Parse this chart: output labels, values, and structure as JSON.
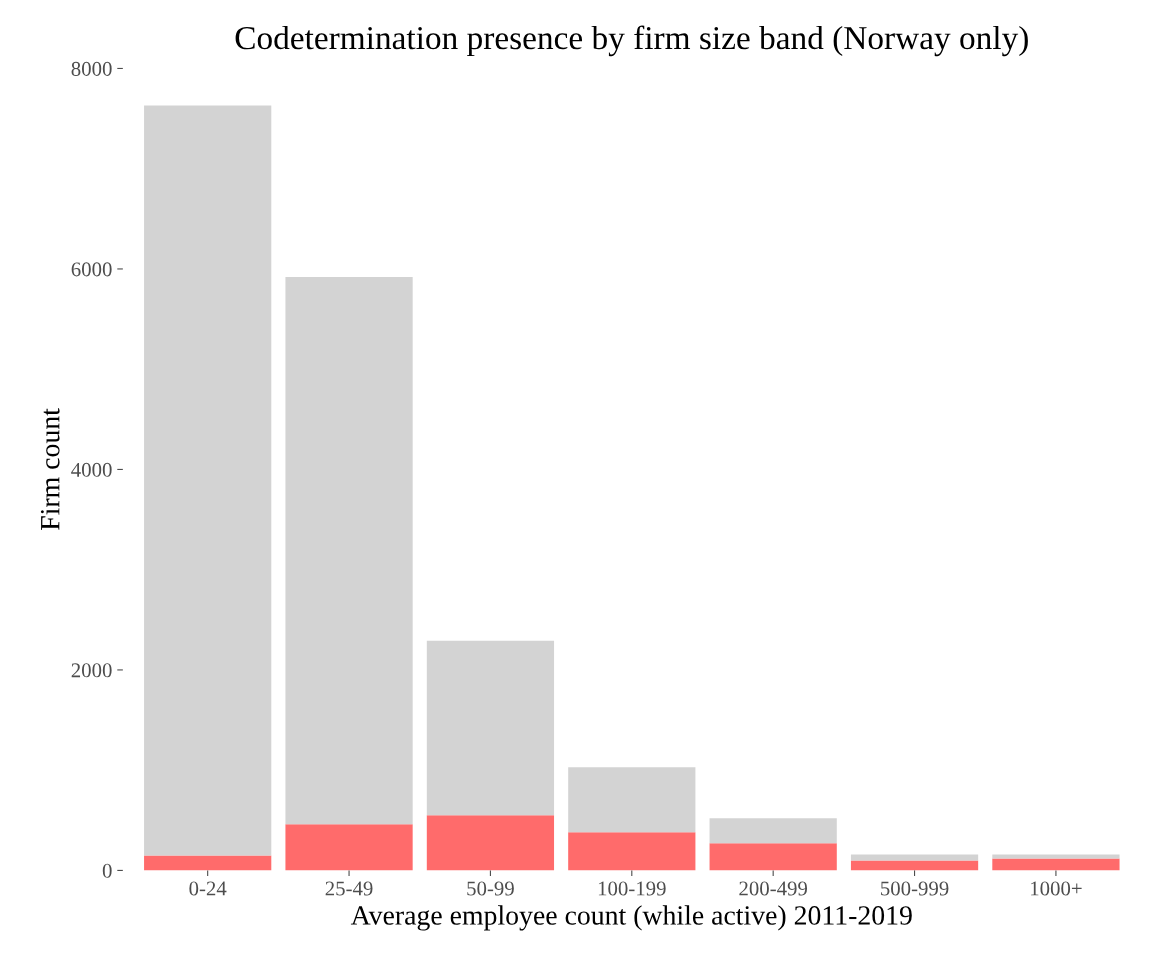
{
  "chart_data": {
    "type": "bar",
    "title": "Codetermination presence by firm size band (Norway only)",
    "xlabel": "Average employee count (while active) 2011-2019",
    "ylabel": "Firm count",
    "categories": [
      "0-24",
      "25-49",
      "50-99",
      "100-199",
      "200-499",
      "500-999",
      "1000+"
    ],
    "stacked": true,
    "series": [
      {
        "color": "#ff6b6b",
        "values": [
          150,
          460,
          550,
          380,
          270,
          100,
          120
        ]
      },
      {
        "color": "#d3d3d3",
        "values": [
          7480,
          5460,
          1740,
          650,
          250,
          60,
          40
        ]
      }
    ],
    "ylim": [
      0,
      8000
    ],
    "yticks": [
      0,
      2000,
      4000,
      6000,
      8000
    ],
    "grid": false
  }
}
